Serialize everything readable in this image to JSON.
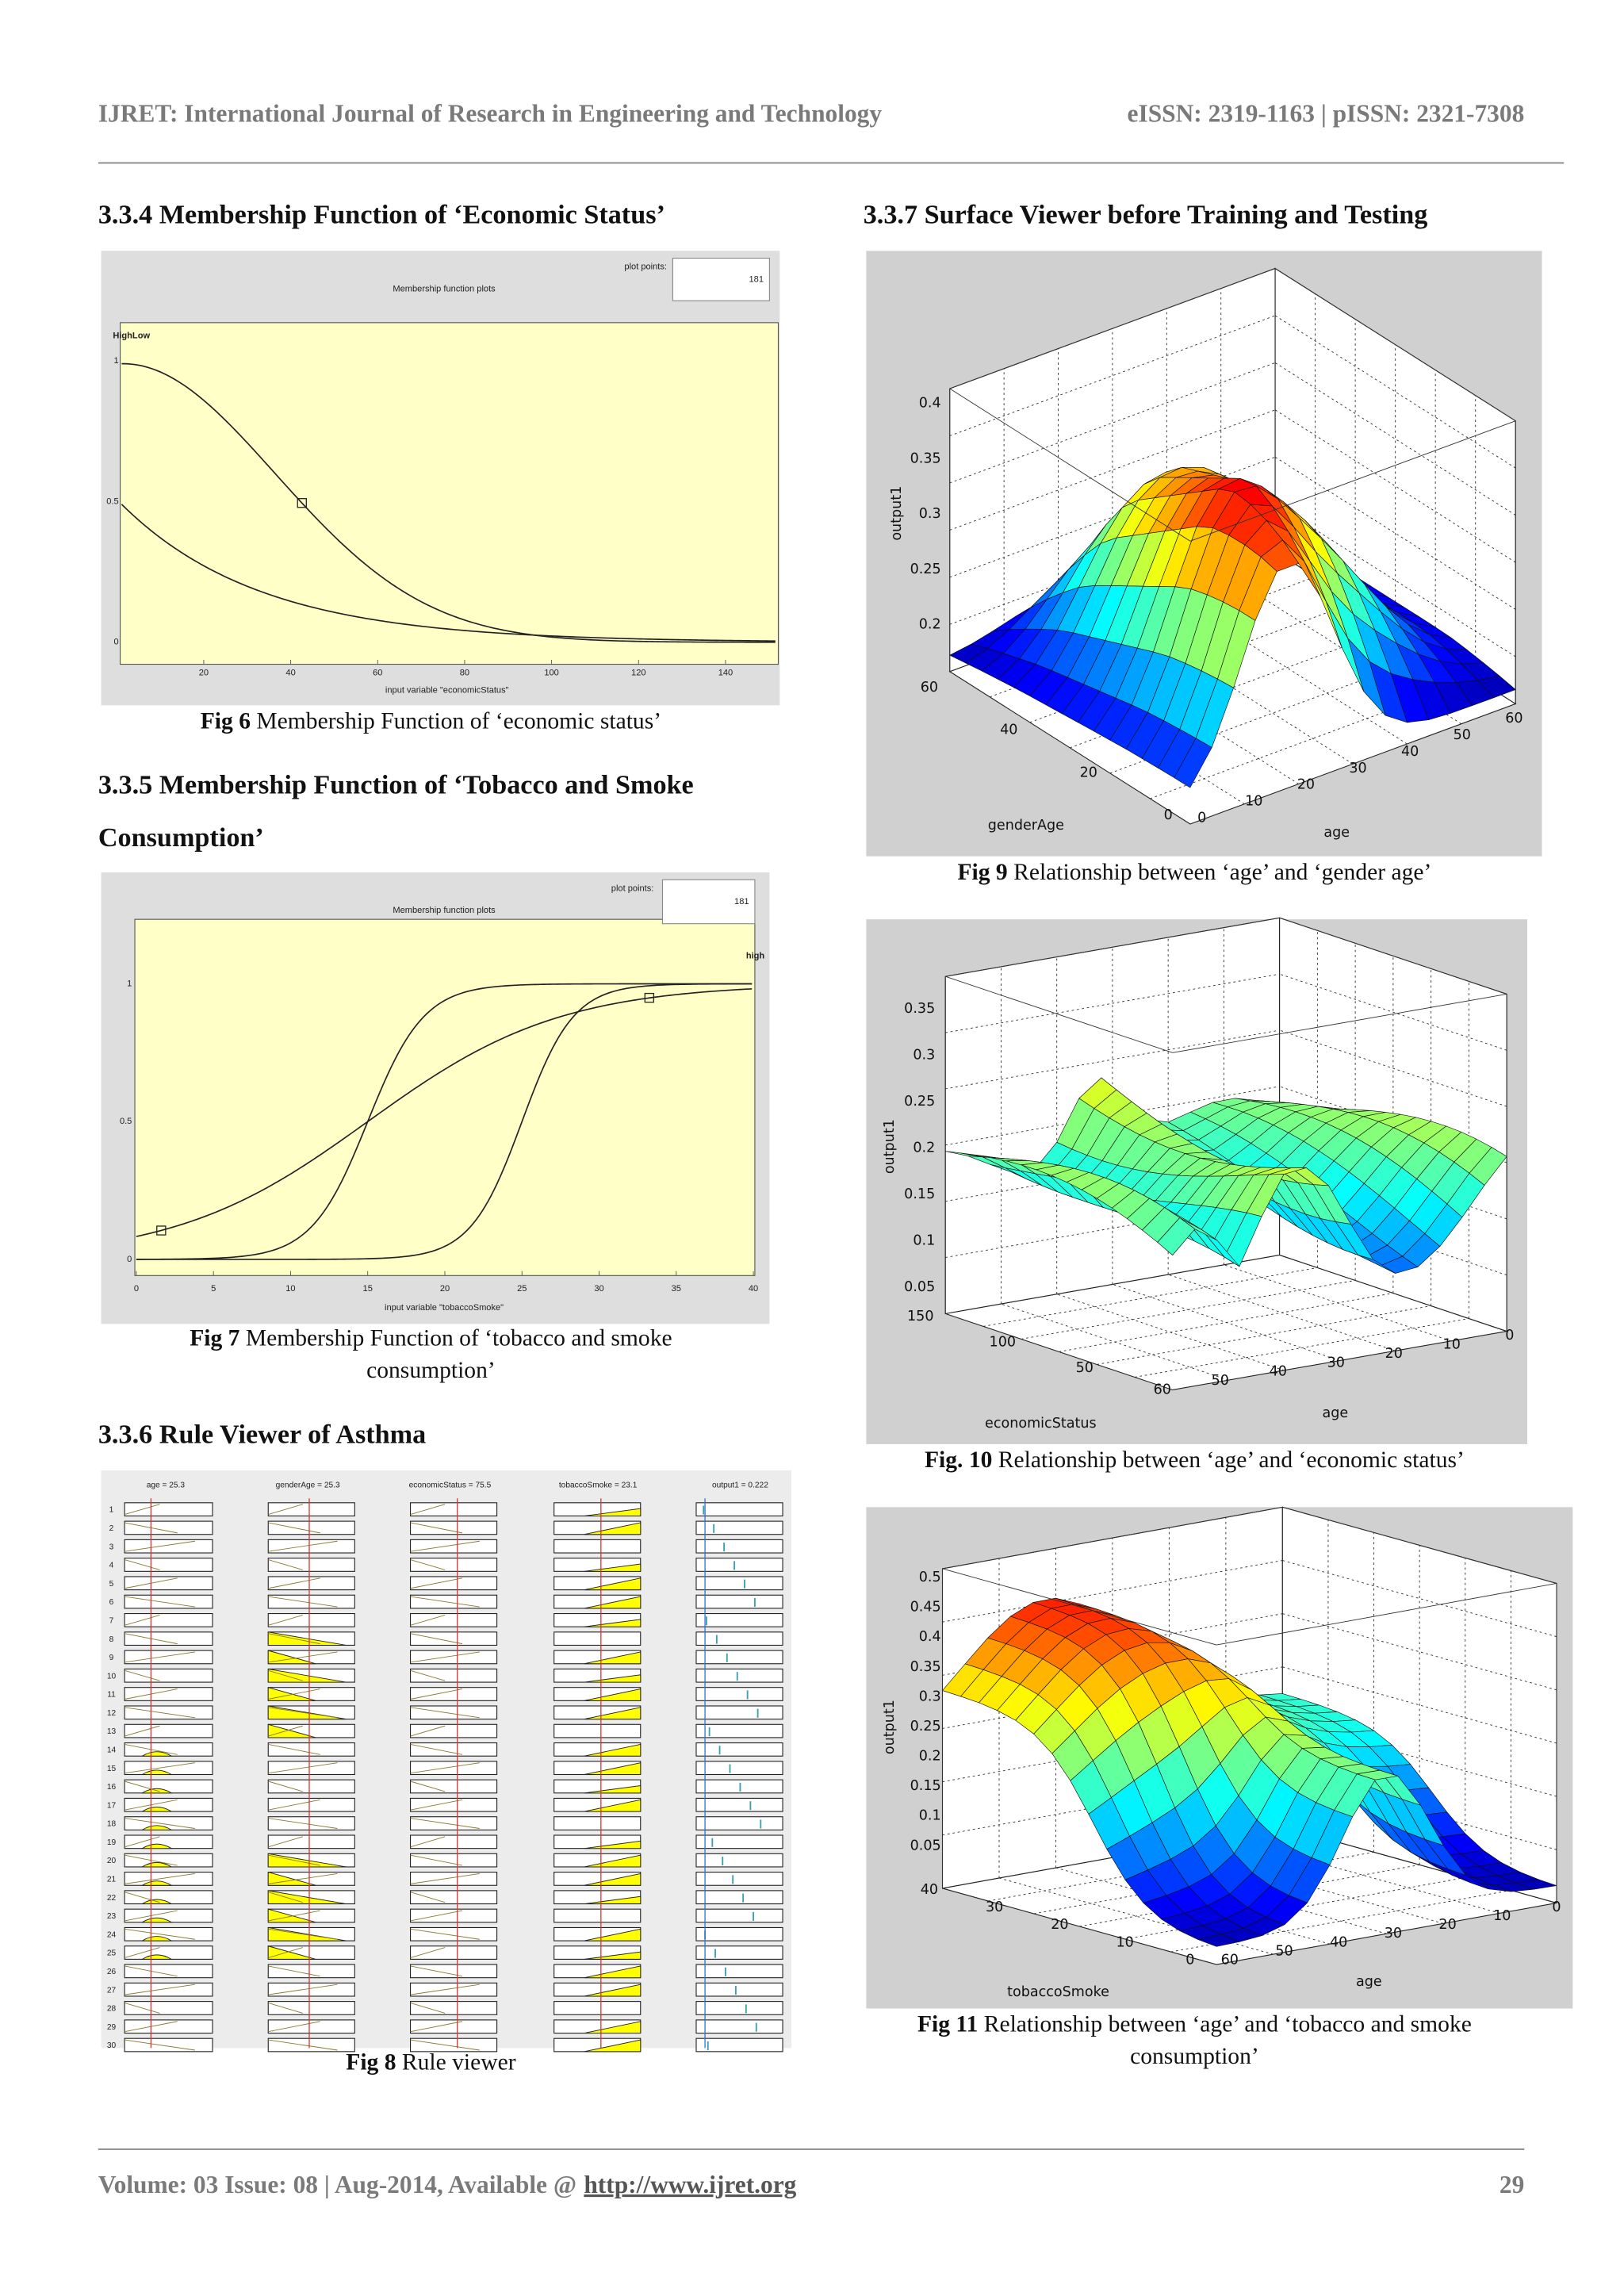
{
  "header": {
    "journal": "IJRET: International Journal of Research in Engineering and Technology",
    "issn": "eISSN: 2319-1163 | pISSN: 2321-7308"
  },
  "fig6": {
    "heading": [
      "3.3.4 Membership Function of ‘Economic Status’"
    ],
    "plot": {
      "title": "Membership function plots",
      "plot_points_label": "plot points:",
      "plot_points": 181,
      "mf_labels": "HighLow",
      "yticks": [
        1,
        0.5,
        0
      ],
      "xticks": [
        20,
        40,
        60,
        80,
        100,
        120,
        140
      ],
      "xlabel": "input variable \"economicStatus\""
    },
    "caption": {
      "label": "Fig 6",
      "lines": [
        "Membership Function of ‘economic status’"
      ]
    }
  },
  "fig7": {
    "heading": [
      "3.3.5 Membership Function of ‘Tobacco and Smoke",
      "Consumption’"
    ],
    "plot": {
      "title": "Membership function plots",
      "plot_points_label": "plot points:",
      "plot_points": 181,
      "mf_labels": "high",
      "yticks": [
        1,
        0.5,
        0
      ],
      "xticks": [
        0,
        5,
        10,
        15,
        20,
        25,
        30,
        35,
        40
      ],
      "xlabel": "input variable \"tobaccoSmoke\""
    },
    "caption": {
      "label": "Fig 7",
      "lines": [
        "Membership Function of ‘tobacco and smoke",
        "consumption’"
      ]
    }
  },
  "fig8": {
    "heading": [
      "3.3.6 Rule Viewer of Asthma"
    ],
    "viewer": {
      "inputs": [
        "age = 25.3",
        "genderAge = 25.3",
        "economicStatus = 75.5",
        "tobaccoSmoke = 23.1",
        "output1 = 0.222"
      ],
      "rules": [
        1,
        2,
        3,
        4,
        5,
        6,
        7,
        8,
        9,
        10,
        11,
        12,
        13,
        14,
        15,
        16,
        17,
        18,
        19,
        20,
        21,
        22,
        23,
        24,
        25,
        26,
        27,
        28,
        29,
        30
      ]
    },
    "caption": {
      "label": "Fig 8",
      "lines": [
        "Rule viewer"
      ]
    }
  },
  "surface_heading": "3.3.7 Surface Viewer before Training and Testing",
  "fig9": {
    "surface": {
      "zlabel": "output1",
      "zticks": [
        0.4,
        0.35,
        0.3,
        0.25,
        0.2
      ],
      "ylabel": "genderAge",
      "yticks": [
        60,
        40,
        20,
        0
      ],
      "xlabel": "age",
      "xticks": [
        0,
        10,
        20,
        30,
        40,
        50,
        60
      ]
    },
    "caption": {
      "label": "Fig 9",
      "lines": [
        "Relationship between ‘age’ and ‘gender age’"
      ]
    }
  },
  "fig10": {
    "surface": {
      "zlabel": "output1",
      "zticks": [
        0.35,
        0.3,
        0.25,
        0.2,
        0.15,
        0.1,
        0.05
      ],
      "ylabel": "economicStatus",
      "yticks": [
        150,
        100,
        50
      ],
      "xlabel": "age",
      "xticks": [
        60,
        50,
        40,
        30,
        20,
        10,
        0
      ]
    },
    "caption": {
      "label": "Fig. 10",
      "lines": [
        "Relationship between ‘age’ and ‘economic  status’"
      ]
    }
  },
  "fig11": {
    "surface": {
      "zlabel": "output1",
      "zticks": [
        0.5,
        0.45,
        0.4,
        0.35,
        0.3,
        0.25,
        0.2,
        0.15,
        0.1,
        0.05
      ],
      "ylabel": "tobaccoSmoke",
      "yticks": [
        40,
        30,
        20,
        10,
        0
      ],
      "xlabel": "age",
      "xticks": [
        60,
        50,
        40,
        30,
        20,
        10,
        0
      ]
    },
    "caption": {
      "label": "Fig 11",
      "lines": [
        "Relationship between ‘age’ and ‘tobacco and smoke",
        "consumption’"
      ]
    }
  },
  "footer": {
    "text": "Volume: 03 Issue: 08 | Aug-2014, Available @",
    "link": "http://www.ijret.org",
    "page": 29
  }
}
